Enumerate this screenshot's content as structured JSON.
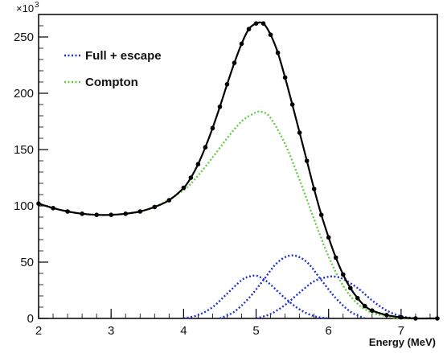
{
  "chart_data": {
    "type": "line",
    "title": "",
    "xlabel": "Energy (MeV)",
    "ylabel": "",
    "y_multiplier": {
      "base": "×10",
      "exponent": "3"
    },
    "xlim": [
      2,
      7.5
    ],
    "ylim": [
      0,
      270
    ],
    "x_ticks": [
      2,
      3,
      4,
      5,
      6,
      7
    ],
    "y_ticks": [
      0,
      50,
      100,
      150,
      200,
      250
    ],
    "grid": false,
    "legend_position": "top-left",
    "colors": {
      "data": "#000000",
      "full_escape": "#2233cc",
      "compton": "#66cc44"
    },
    "legend": [
      {
        "label": "Full + escape",
        "style": "dotted",
        "color": "#2233cc"
      },
      {
        "label": "Compton",
        "style": "dotted",
        "color": "#66cc44"
      }
    ],
    "series": [
      {
        "name": "",
        "style": "line-markers",
        "color": "#000000",
        "x": [
          2.0,
          2.2,
          2.4,
          2.6,
          2.8,
          3.0,
          3.2,
          3.4,
          3.6,
          3.8,
          4.0,
          4.1,
          4.2,
          4.3,
          4.4,
          4.5,
          4.6,
          4.7,
          4.8,
          4.9,
          5.0,
          5.1,
          5.2,
          5.3,
          5.4,
          5.5,
          5.6,
          5.7,
          5.8,
          5.9,
          6.0,
          6.1,
          6.2,
          6.3,
          6.4,
          6.5,
          6.6,
          6.8,
          7.0,
          7.2,
          7.5
        ],
        "y": [
          102,
          98,
          95,
          93,
          92,
          92,
          93,
          95,
          99,
          105,
          116,
          125,
          137,
          152,
          169,
          188,
          208,
          227,
          244,
          257,
          262,
          262,
          252,
          236,
          214,
          190,
          165,
          140,
          115,
          92,
          72,
          54,
          39,
          27,
          18,
          11,
          7,
          3,
          1,
          0,
          0
        ]
      },
      {
        "name": "Compton",
        "style": "dotted",
        "color": "#66cc44",
        "x": [
          2.0,
          2.4,
          2.8,
          3.2,
          3.6,
          4.0,
          4.2,
          4.4,
          4.6,
          4.8,
          5.0,
          5.1,
          5.2,
          5.4,
          5.6,
          5.8,
          6.0,
          6.2,
          6.4,
          6.6,
          6.8,
          7.0,
          7.5
        ],
        "y": [
          102,
          95,
          92,
          93,
          99,
          114,
          127,
          143,
          160,
          175,
          183,
          183,
          178,
          155,
          123,
          88,
          55,
          29,
          13,
          5,
          2,
          0,
          0
        ]
      },
      {
        "name": "Full + escape",
        "style": "dotted",
        "color": "#2233cc",
        "x": [
          4.0,
          4.2,
          4.4,
          4.6,
          4.8,
          4.9,
          5.0,
          5.1,
          5.2,
          5.4,
          5.6,
          5.8,
          6.0
        ],
        "y": [
          0,
          3,
          10,
          22,
          34,
          37,
          38,
          35,
          30,
          18,
          8,
          2,
          0
        ]
      },
      {
        "name": "Full + escape",
        "style": "dotted",
        "color": "#2233cc",
        "x": [
          4.5,
          4.7,
          4.9,
          5.1,
          5.3,
          5.5,
          5.7,
          5.9,
          6.1,
          6.3,
          6.5
        ],
        "y": [
          0,
          6,
          18,
          34,
          50,
          56,
          50,
          34,
          18,
          6,
          0
        ]
      },
      {
        "name": "Full + escape",
        "style": "dotted",
        "color": "#2233cc",
        "x": [
          5.0,
          5.2,
          5.4,
          5.6,
          5.8,
          6.0,
          6.1,
          6.2,
          6.4,
          6.6,
          6.8,
          7.0,
          7.2
        ],
        "y": [
          0,
          4,
          12,
          23,
          33,
          37,
          37,
          35,
          27,
          16,
          7,
          2,
          0
        ]
      }
    ]
  }
}
